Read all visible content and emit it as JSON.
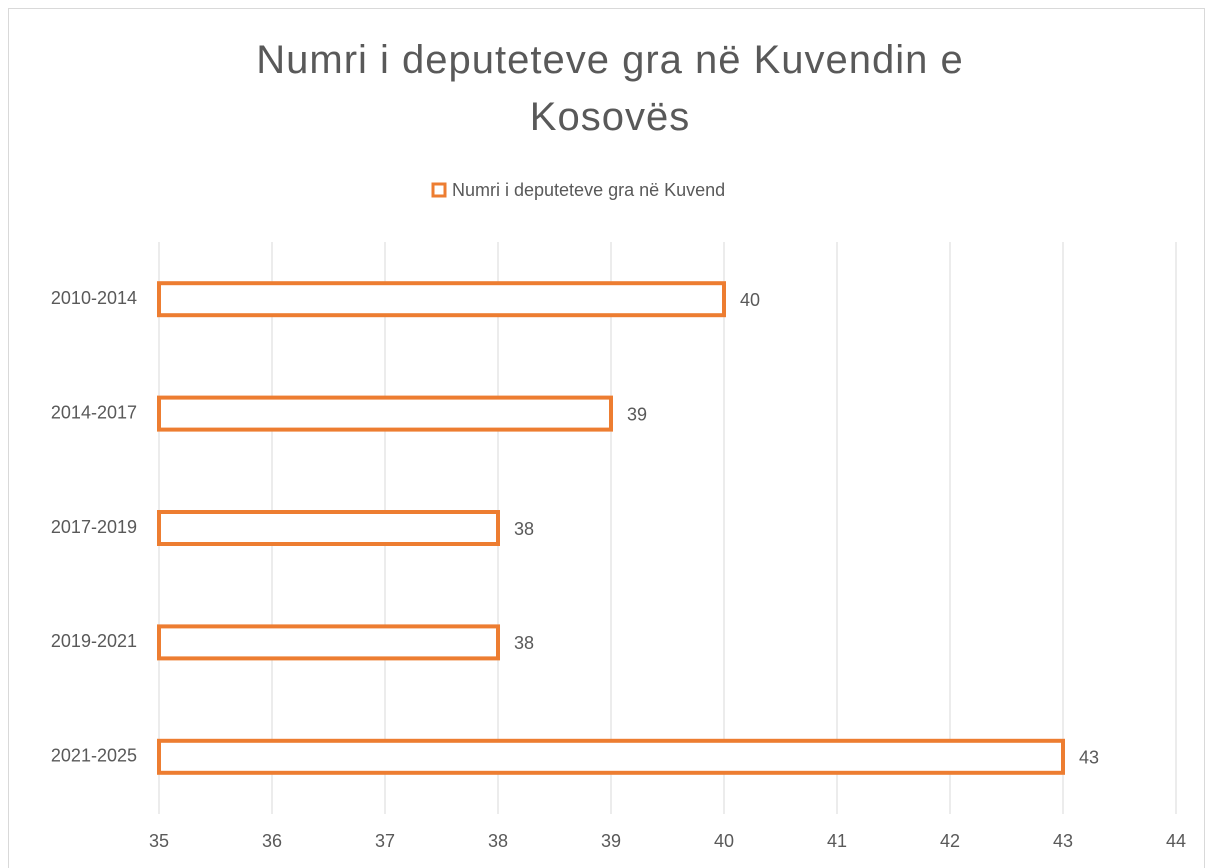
{
  "chart_data": {
    "type": "bar",
    "orientation": "horizontal",
    "title": "Numri i deputeteve gra në Kuvendin e Kosovës",
    "categories": [
      "2010-2014",
      "2014-2017",
      "2017-2019",
      "2019-2021",
      "2021-2025"
    ],
    "series": [
      {
        "name": "Numri i deputeteve gra në Kuvend",
        "color": "#ed7d31",
        "values": [
          40,
          39,
          38,
          38,
          43
        ]
      }
    ],
    "xlim": [
      35,
      44
    ],
    "xticks": [
      35,
      36,
      37,
      38,
      39,
      40,
      41,
      42,
      43,
      44
    ],
    "grid": true,
    "legend": "top"
  }
}
